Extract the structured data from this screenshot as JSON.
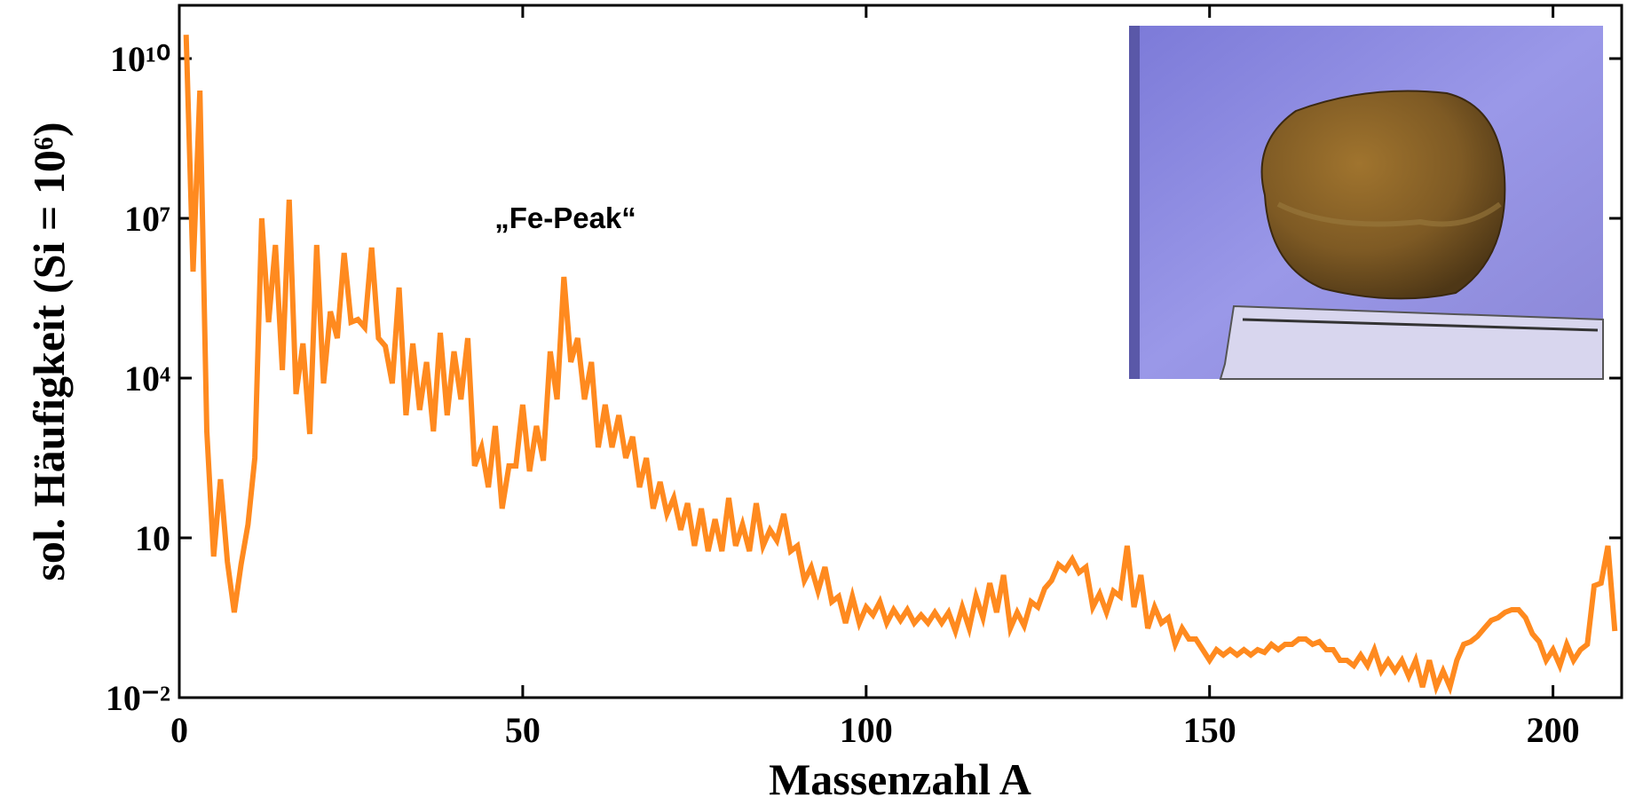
{
  "chart_data": {
    "type": "line",
    "xlabel": "Massenzahl A",
    "ylabel": "sol. Häufigkeit (Si = 10⁶)",
    "annotation": "„Fe-Peak“",
    "color": "#ff8a1f",
    "yscale": "log",
    "xlim": [
      0,
      210
    ],
    "ylim": [
      0.01,
      100000000000
    ],
    "xticks": [
      0,
      50,
      100,
      150,
      200
    ],
    "yticks": [
      {
        "value": 0.01,
        "label": "10⁻²"
      },
      10,
      {
        "value": 10000,
        "label": "10⁴"
      },
      {
        "value": 10000000,
        "label": "10⁷"
      },
      {
        "value": 10000000000,
        "label": "10¹⁰"
      }
    ],
    "x": [
      1,
      2,
      3,
      4,
      5,
      6,
      7,
      8,
      9,
      10,
      11,
      12,
      13,
      14,
      15,
      16,
      17,
      18,
      19,
      20,
      21,
      22,
      23,
      24,
      25,
      26,
      27,
      28,
      29,
      30,
      31,
      32,
      33,
      34,
      35,
      36,
      37,
      38,
      39,
      40,
      41,
      42,
      43,
      44,
      45,
      46,
      47,
      48,
      49,
      50,
      51,
      52,
      53,
      54,
      55,
      56,
      57,
      58,
      59,
      60,
      61,
      62,
      63,
      64,
      65,
      66,
      67,
      68,
      69,
      70,
      71,
      72,
      73,
      74,
      75,
      76,
      77,
      78,
      79,
      80,
      81,
      82,
      83,
      84,
      85,
      86,
      87,
      88,
      89,
      90,
      91,
      92,
      93,
      94,
      95,
      96,
      97,
      98,
      99,
      100,
      101,
      102,
      103,
      104,
      105,
      106,
      107,
      108,
      109,
      110,
      111,
      112,
      113,
      114,
      115,
      116,
      117,
      118,
      119,
      120,
      121,
      122,
      123,
      124,
      125,
      126,
      127,
      128,
      129,
      130,
      131,
      132,
      133,
      134,
      135,
      136,
      137,
      138,
      139,
      140,
      141,
      142,
      143,
      144,
      145,
      146,
      147,
      148,
      149,
      150,
      151,
      152,
      153,
      154,
      155,
      156,
      157,
      158,
      159,
      160,
      161,
      162,
      163,
      164,
      165,
      166,
      167,
      168,
      169,
      170,
      171,
      172,
      173,
      174,
      175,
      176,
      177,
      178,
      179,
      180,
      181,
      182,
      183,
      184,
      185,
      186,
      187,
      188,
      189,
      190,
      191,
      192,
      193,
      194,
      195,
      196,
      197,
      198,
      199,
      200,
      201,
      202,
      203,
      204,
      205,
      206,
      207,
      208,
      209
    ],
    "values": [
      28000000000.0,
      1000000.0,
      2500000000.0,
      1000.0,
      4.47,
      126,
      3.55,
      0.398,
      3.16,
      17.8,
      316,
      10000000.0,
      112000.0,
      3160000.0,
      14100.0,
      22400000.0,
      5010,
      44700.0,
      891,
      3160000.0,
      7940,
      178000.0,
      56200.0,
      2240000.0,
      112000.0,
      126000.0,
      89100.0,
      2820000.0,
      56200.0,
      39800.0,
      7940,
      501000.0,
      2000,
      44700.0,
      2510,
      20000.0,
      1000,
      70800.0,
      2000,
      31600.0,
      3980,
      56200.0,
      224,
      501,
      89.1,
      1260,
      35.5,
      224,
      224,
      3160,
      178,
      1260,
      282,
      31600.0,
      3980,
      794000.0,
      20000.0,
      56200.0,
      3980,
      20000.0,
      501,
      3160,
      501,
      2000,
      316,
      794,
      89.1,
      316,
      35.5,
      112,
      28.2,
      56.2,
      14.1,
      44.7,
      7.08,
      35.5,
      5.62,
      22.4,
      5.62,
      56.2,
      7.08,
      17.8,
      5.62,
      44.7,
      7.08,
      14.1,
      8.91,
      28.2,
      5.62,
      7.08,
      1.58,
      2.82,
      1,
      2.82,
      0.631,
      0.794,
      0.251,
      0.794,
      0.251,
      0.501,
      0.355,
      0.631,
      0.251,
      0.447,
      0.282,
      0.447,
      0.251,
      0.355,
      0.251,
      0.398,
      0.251,
      0.398,
      0.178,
      0.501,
      0.2,
      0.794,
      0.316,
      1.41,
      0.398,
      2,
      0.2,
      0.398,
      0.224,
      0.631,
      0.501,
      1.12,
      1.58,
      3.16,
      2.51,
      3.98,
      2.24,
      2.82,
      0.501,
      0.891,
      0.398,
      1,
      0.794,
      7.08,
      0.501,
      2,
      0.2,
      0.501,
      0.251,
      0.316,
      0.1,
      0.2,
      0.126,
      0.126,
      0.0794,
      0.0501,
      0.0794,
      0.0631,
      0.0794,
      0.0631,
      0.0794,
      0.0631,
      0.0794,
      0.0708,
      0.1,
      0.0794,
      0.1,
      0.1,
      0.126,
      0.126,
      0.1,
      0.112,
      0.0794,
      0.0794,
      0.0501,
      0.0501,
      0.0398,
      0.0631,
      0.0398,
      0.0794,
      0.0316,
      0.0501,
      0.0316,
      0.0501,
      0.0251,
      0.0501,
      0.0158,
      0.0501,
      0.0158,
      0.0316,
      0.0158,
      0.0501,
      0.1,
      0.112,
      0.141,
      0.2,
      0.282,
      0.316,
      0.398,
      0.447,
      0.447,
      0.316,
      0.158,
      0.112,
      0.0501,
      0.0794,
      0.0398,
      0.1,
      0.0501,
      0.0794,
      0.1,
      1.26,
      1.41,
      7.08,
      0.178
    ]
  }
}
